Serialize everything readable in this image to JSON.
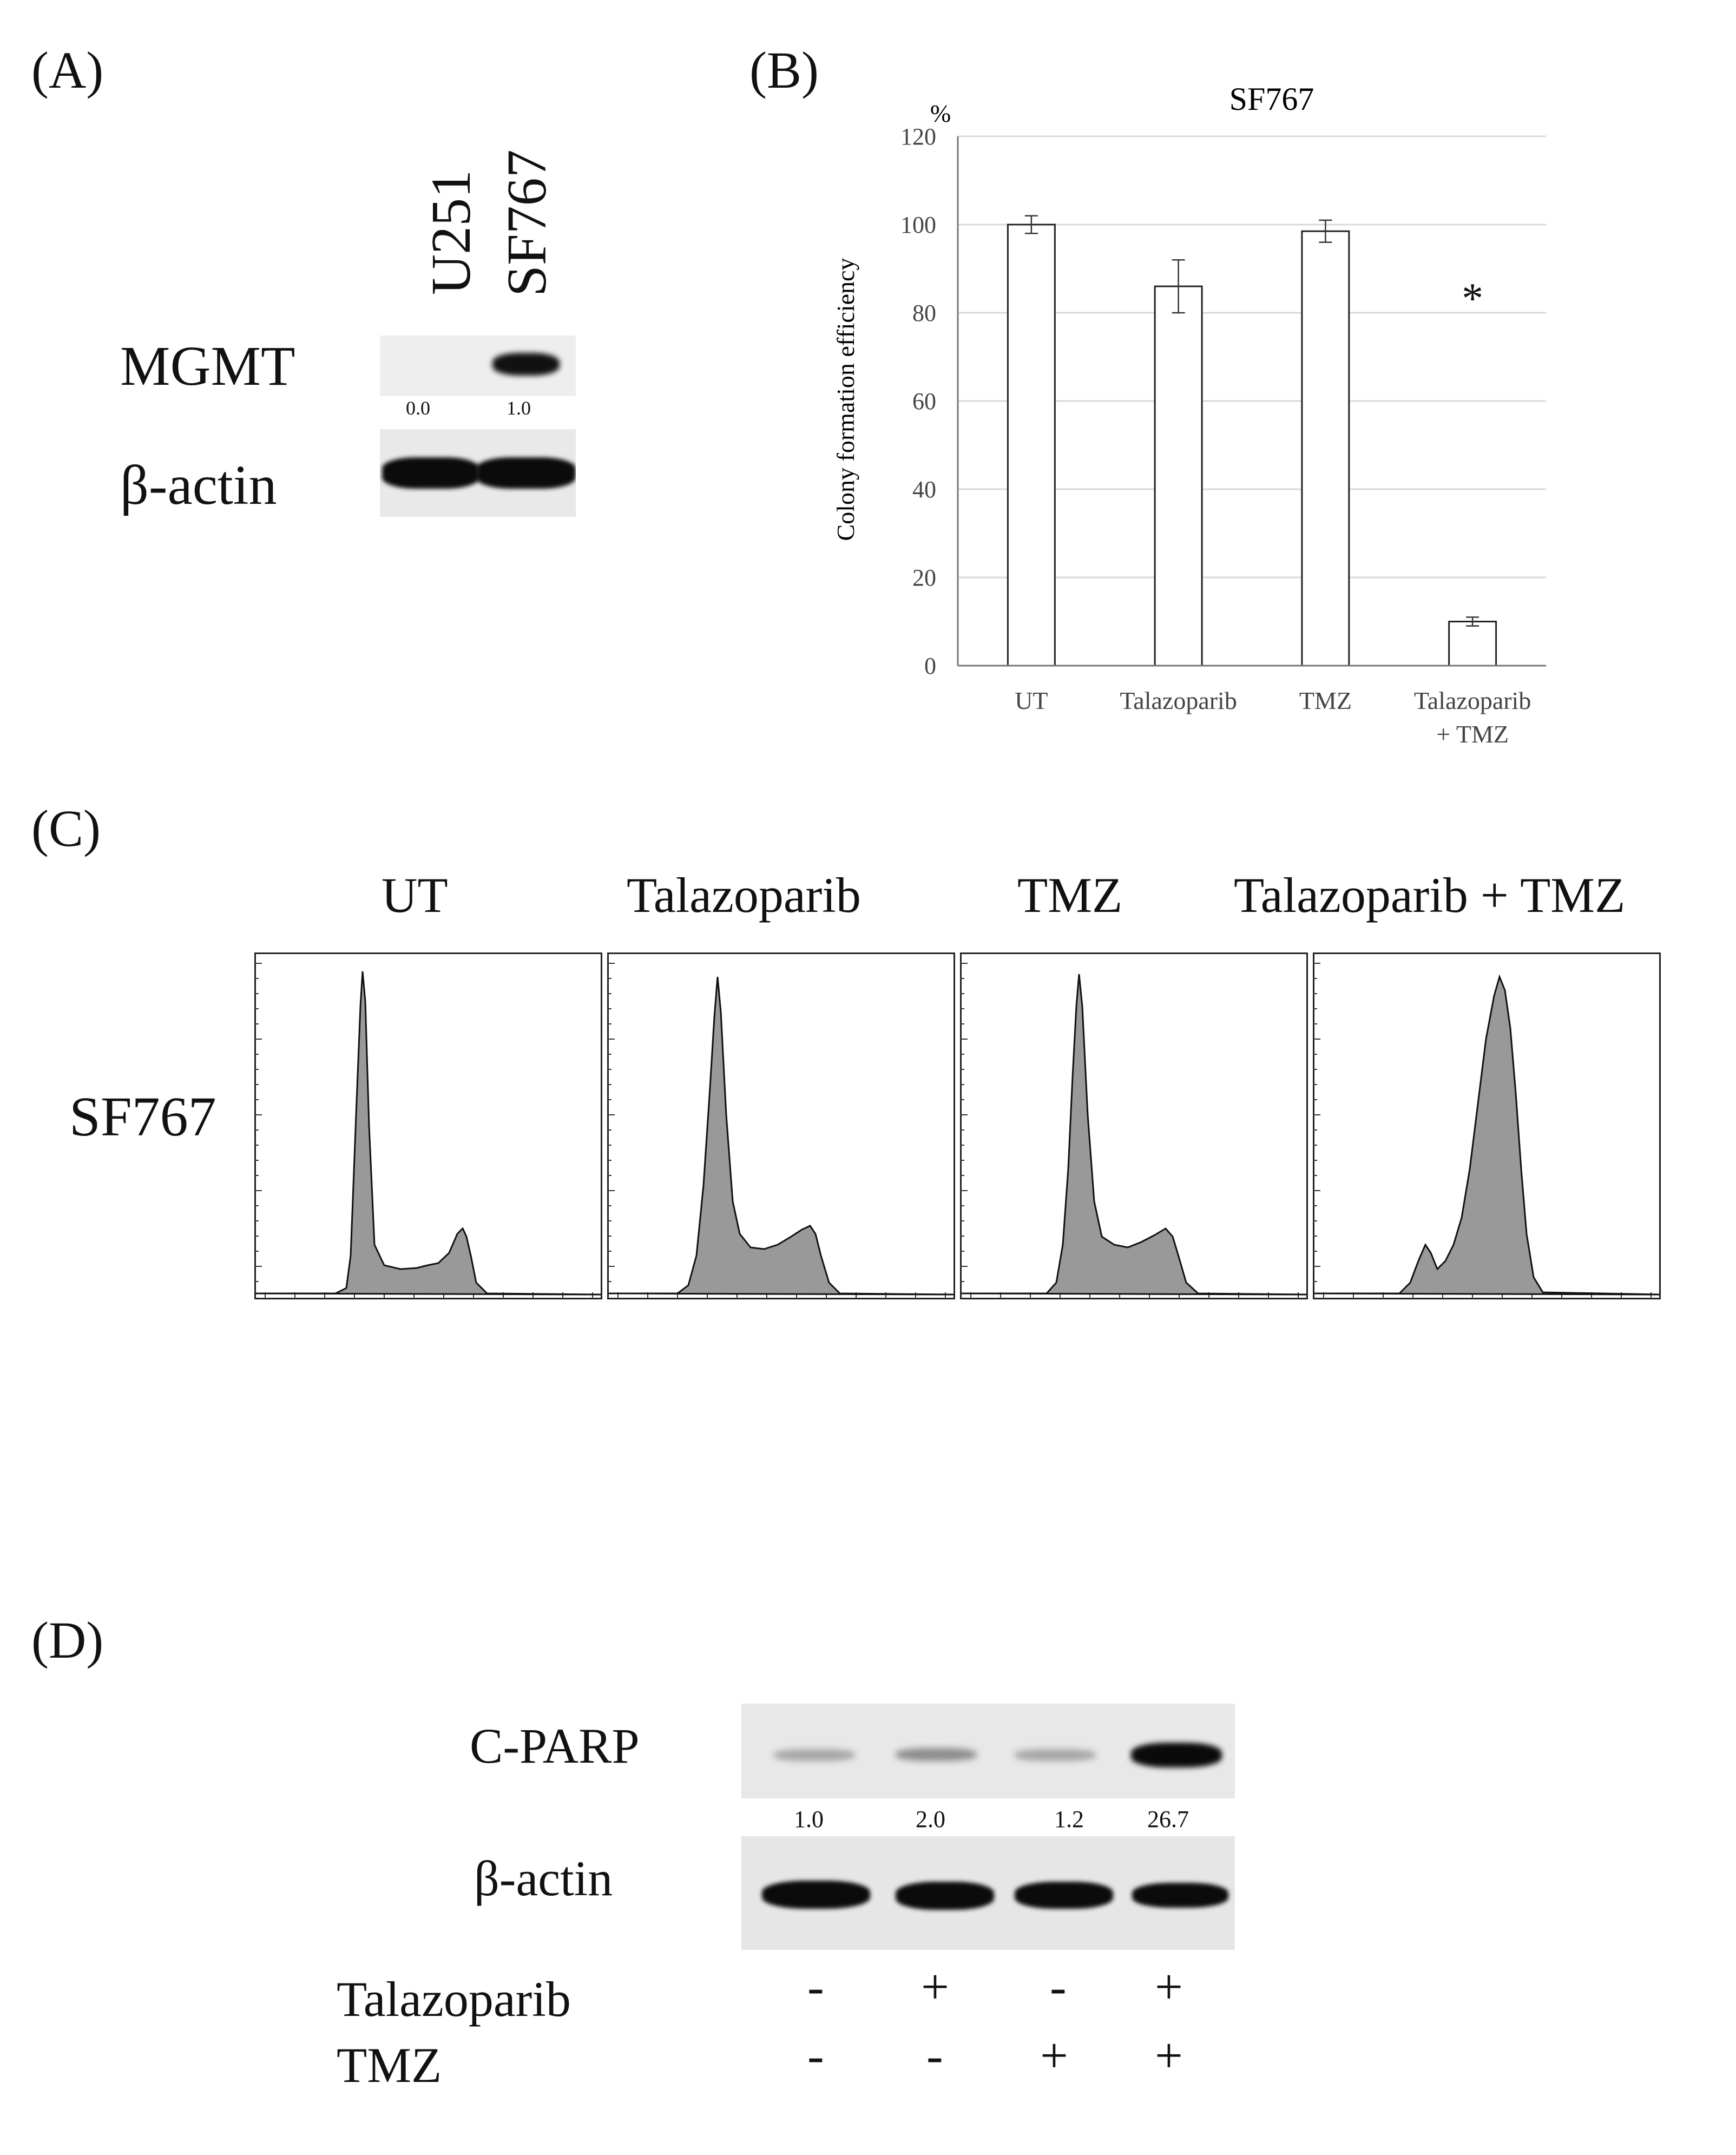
{
  "panels": {
    "a": {
      "label": "(A)",
      "lanes": [
        "U251",
        "SF767"
      ],
      "rows": [
        {
          "name": "MGMT",
          "values": [
            "0.0",
            "1.0"
          ]
        },
        {
          "name": "β-actin",
          "values": []
        }
      ]
    },
    "b": {
      "label": "(B)"
    },
    "c": {
      "label": "(C)",
      "row_label": "SF767",
      "columns": [
        "UT",
        "Talazoparib",
        "TMZ",
        "Talazoparib + TMZ"
      ]
    },
    "d": {
      "label": "(D)",
      "rows": [
        {
          "name": "C-PARP",
          "values": [
            "1.0",
            "2.0",
            "1.2",
            "26.7"
          ]
        },
        {
          "name": "β-actin",
          "values": []
        }
      ],
      "treatments": [
        {
          "name": "Talazoparib",
          "signs": [
            "-",
            "+",
            "-",
            "+"
          ]
        },
        {
          "name": "TMZ",
          "signs": [
            "-",
            "-",
            "+",
            "+"
          ]
        }
      ]
    }
  },
  "chart_data": {
    "type": "bar",
    "title": "SF767",
    "ylabel": "Colony formation efficiency",
    "yunit": "%",
    "categories": [
      "UT",
      "Talazoparib",
      "TMZ",
      "Talazoparib\n+ TMZ"
    ],
    "values": [
      100,
      86,
      98.5,
      10
    ],
    "errors": [
      2,
      6,
      2.5,
      1
    ],
    "annotations": [
      "",
      "",
      "",
      "*"
    ],
    "ylim": [
      0,
      120
    ],
    "yticks": [
      0,
      20,
      40,
      60,
      80,
      100,
      120
    ],
    "grid": true,
    "colors": {
      "bar_fill": "#ffffff",
      "bar_stroke": "#222222",
      "grid": "#d9d9d9"
    }
  }
}
